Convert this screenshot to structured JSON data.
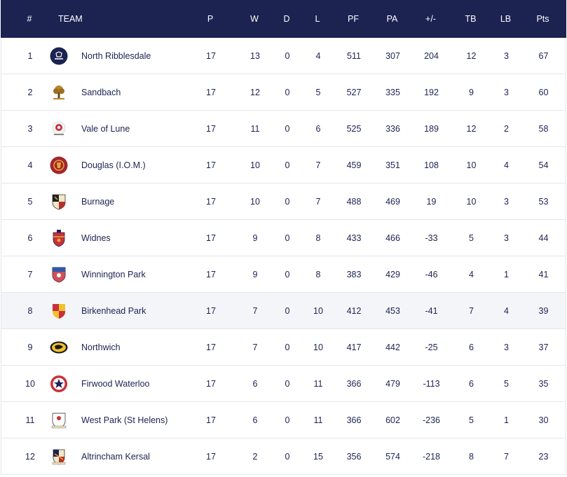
{
  "header": {
    "pos": "#",
    "team": "TEAM",
    "p": "P",
    "w": "W",
    "d": "D",
    "l": "L",
    "pf": "PF",
    "pa": "PA",
    "pm": "+/-",
    "tb": "TB",
    "lb": "LB",
    "pts": "Pts"
  },
  "rows": [
    {
      "pos": "1",
      "team": "North Ribblesdale",
      "p": "17",
      "w": "13",
      "d": "0",
      "l": "4",
      "pf": "511",
      "pa": "307",
      "pm": "204",
      "tb": "12",
      "lb": "3",
      "pts": "67",
      "crest": "north-ribblesdale-crest-icon"
    },
    {
      "pos": "2",
      "team": "Sandbach",
      "p": "17",
      "w": "12",
      "d": "0",
      "l": "5",
      "pf": "527",
      "pa": "335",
      "pm": "192",
      "tb": "9",
      "lb": "3",
      "pts": "60",
      "crest": "sandbach-crest-icon"
    },
    {
      "pos": "3",
      "team": "Vale of Lune",
      "p": "17",
      "w": "11",
      "d": "0",
      "l": "6",
      "pf": "525",
      "pa": "336",
      "pm": "189",
      "tb": "12",
      "lb": "2",
      "pts": "58",
      "crest": "vale-of-lune-crest-icon"
    },
    {
      "pos": "4",
      "team": "Douglas (I.O.M.)",
      "p": "17",
      "w": "10",
      "d": "0",
      "l": "7",
      "pf": "459",
      "pa": "351",
      "pm": "108",
      "tb": "10",
      "lb": "4",
      "pts": "54",
      "crest": "douglas-crest-icon"
    },
    {
      "pos": "5",
      "team": "Burnage",
      "p": "17",
      "w": "10",
      "d": "0",
      "l": "7",
      "pf": "488",
      "pa": "469",
      "pm": "19",
      "tb": "10",
      "lb": "3",
      "pts": "53",
      "crest": "burnage-crest-icon"
    },
    {
      "pos": "6",
      "team": "Widnes",
      "p": "17",
      "w": "9",
      "d": "0",
      "l": "8",
      "pf": "433",
      "pa": "466",
      "pm": "-33",
      "tb": "5",
      "lb": "3",
      "pts": "44",
      "crest": "widnes-crest-icon"
    },
    {
      "pos": "7",
      "team": "Winnington Park",
      "p": "17",
      "w": "9",
      "d": "0",
      "l": "8",
      "pf": "383",
      "pa": "429",
      "pm": "-46",
      "tb": "4",
      "lb": "1",
      "pts": "41",
      "crest": "winnington-park-crest-icon"
    },
    {
      "pos": "8",
      "team": "Birkenhead Park",
      "p": "17",
      "w": "7",
      "d": "0",
      "l": "10",
      "pf": "412",
      "pa": "453",
      "pm": "-41",
      "tb": "7",
      "lb": "4",
      "pts": "39",
      "crest": "birkenhead-park-crest-icon"
    },
    {
      "pos": "9",
      "team": "Northwich",
      "p": "17",
      "w": "7",
      "d": "0",
      "l": "10",
      "pf": "417",
      "pa": "442",
      "pm": "-25",
      "tb": "6",
      "lb": "3",
      "pts": "37",
      "crest": "northwich-crest-icon"
    },
    {
      "pos": "10",
      "team": "Firwood Waterloo",
      "p": "17",
      "w": "6",
      "d": "0",
      "l": "11",
      "pf": "366",
      "pa": "479",
      "pm": "-113",
      "tb": "6",
      "lb": "5",
      "pts": "35",
      "crest": "firwood-waterloo-crest-icon"
    },
    {
      "pos": "11",
      "team": "West Park (St Helens)",
      "p": "17",
      "w": "6",
      "d": "0",
      "l": "11",
      "pf": "366",
      "pa": "602",
      "pm": "-236",
      "tb": "5",
      "lb": "1",
      "pts": "30",
      "crest": "west-park-crest-icon"
    },
    {
      "pos": "12",
      "team": "Altrincham Kersal",
      "p": "17",
      "w": "2",
      "d": "0",
      "l": "15",
      "pf": "356",
      "pa": "574",
      "pm": "-218",
      "tb": "8",
      "lb": "7",
      "pts": "23",
      "crest": "altrincham-kersal-crest-icon"
    }
  ],
  "highlighted_row": "8",
  "colors": {
    "header_bg": "#1c2351",
    "header_text": "#ffffff",
    "row_text": "#1c2351",
    "row_highlight_bg": "#f4f5f8",
    "divider": "#e6e7ec"
  }
}
